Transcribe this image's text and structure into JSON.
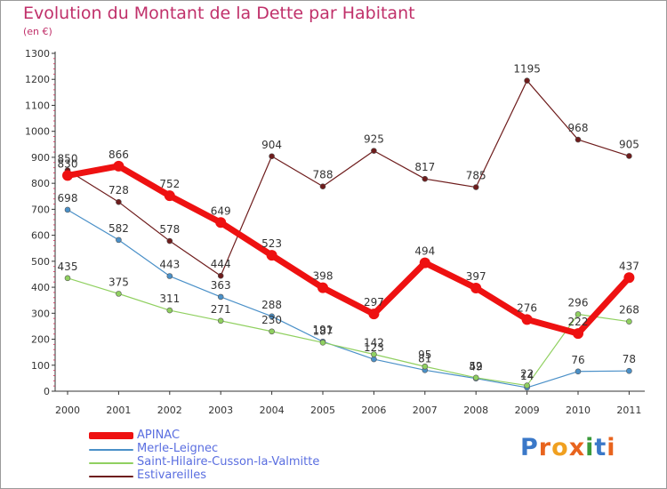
{
  "title": "Evolution du Montant de la Dette par Habitant",
  "subtitle": "(en €)",
  "chart_data": {
    "type": "line",
    "x": [
      "2000",
      "2001",
      "2002",
      "2003",
      "2004",
      "2005",
      "2006",
      "2007",
      "2008",
      "2009",
      "2010",
      "2011"
    ],
    "ylim": [
      0,
      1300
    ],
    "yticks": [
      0,
      100,
      200,
      300,
      400,
      500,
      600,
      700,
      800,
      900,
      1000,
      1100,
      1200,
      1300
    ],
    "grid": false,
    "legend_position": "bottom-left",
    "series": [
      {
        "name": "APINAC",
        "color": "#ee1111",
        "values": [
          830,
          866,
          752,
          649,
          523,
          398,
          297,
          494,
          397,
          276,
          222,
          437
        ]
      },
      {
        "name": "Merle-Leignec",
        "color": "#4a90c8",
        "values": [
          698,
          582,
          443,
          363,
          288,
          191,
          123,
          81,
          49,
          14,
          76,
          78
        ]
      },
      {
        "name": "Saint-Hilaire-Cusson-la-Valmitte",
        "color": "#90d060",
        "values": [
          435,
          375,
          311,
          271,
          230,
          187,
          142,
          95,
          52,
          22,
          296,
          268
        ]
      },
      {
        "name": "Estivareilles",
        "color": "#6e1c1c",
        "values": [
          850,
          728,
          578,
          444,
          904,
          788,
          925,
          817,
          785,
          1195,
          968,
          905
        ]
      }
    ]
  },
  "legend": [
    {
      "label": "APINAC",
      "color": "#ee1111"
    },
    {
      "label": "Merle-Leignec",
      "color": "#4a90c8"
    },
    {
      "label": "Saint-Hilaire-Cusson-la-Valmitte",
      "color": "#90d060"
    },
    {
      "label": "Estivareilles",
      "color": "#6e1c1c"
    }
  ],
  "logo": {
    "text": "Proxiti",
    "colors": [
      "#3a78c8",
      "#e8641e",
      "#f0a020",
      "#e8641e",
      "#3a9a3a",
      "#3a78c8",
      "#e8641e"
    ]
  }
}
